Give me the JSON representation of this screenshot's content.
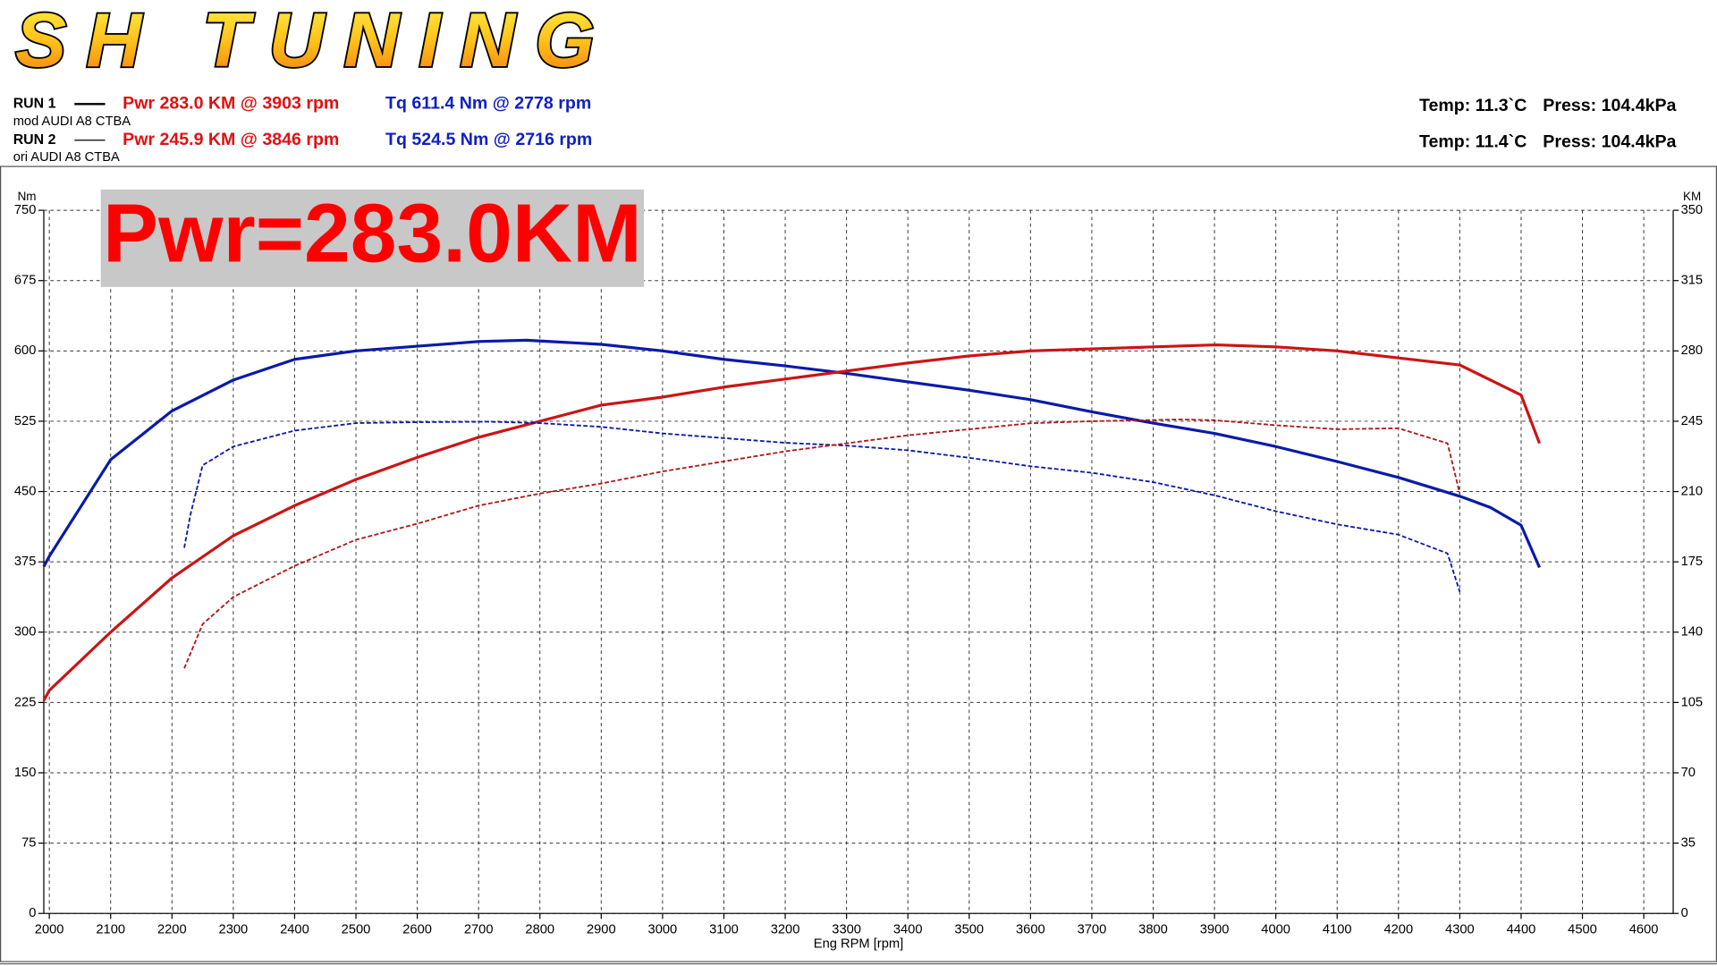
{
  "chart_data": {
    "type": "line",
    "logo": "SH TUNING",
    "annotation": "Pwr=283.0KM",
    "ylabel": "Nm",
    "y2label": "KM",
    "xlabel": "Eng RPM [rpm]",
    "runs": [
      {
        "label": "RUN 1",
        "vehicle": "mod AUDI A8 CTBA",
        "pwr": "Pwr 283.0 KM @ 3903 rpm",
        "tq": "Tq 611.4 Nm @ 2778 rpm",
        "temp": "Temp: 11.3`C",
        "press": "Press: 104.4kPa",
        "style": "solid"
      },
      {
        "label": "RUN 2",
        "vehicle": "ori AUDI A8 CTBA",
        "pwr": "Pwr 245.9 KM @ 3846 rpm",
        "tq": "Tq 524.5 Nm @ 2716 rpm",
        "temp": "Temp: 11.4`C",
        "press": "Press: 104.4kPa",
        "style": "dashed"
      }
    ],
    "xlim": [
      1991,
      4648
    ],
    "xticks": [
      2000,
      2100,
      2200,
      2300,
      2400,
      2500,
      2600,
      2700,
      2800,
      2900,
      3000,
      3100,
      3200,
      3300,
      3400,
      3500,
      3600,
      3700,
      3800,
      3900,
      4000,
      4100,
      4200,
      4300,
      4400,
      4500,
      4600
    ],
    "ylim": [
      0,
      750
    ],
    "yticks": [
      0,
      75,
      150,
      225,
      300,
      375,
      450,
      525,
      600,
      675,
      750
    ],
    "y2lim": [
      0,
      350
    ],
    "y2ticks": [
      0,
      35,
      70,
      105,
      140,
      175,
      210,
      245,
      280,
      315,
      350
    ],
    "grid": true,
    "series": [
      {
        "color": "#0a1aa8",
        "style": "solid",
        "axis": "y",
        "x": [
          1991,
          2000,
          2100,
          2200,
          2300,
          2400,
          2500,
          2600,
          2700,
          2778,
          2900,
          3000,
          3100,
          3200,
          3300,
          3400,
          3500,
          3600,
          3700,
          3800,
          3900,
          4000,
          4100,
          4200,
          4300,
          4350,
          4400,
          4430
        ],
        "values": [
          370,
          381,
          484,
          536,
          569,
          591,
          600,
          605,
          610,
          611.4,
          607,
          600,
          591,
          584,
          576,
          567,
          558,
          548,
          535,
          523,
          512,
          498,
          482,
          465,
          445,
          433,
          414,
          369
        ]
      },
      {
        "color": "#cc1414",
        "style": "solid",
        "axis": "y2",
        "x": [
          1991,
          2000,
          2100,
          2200,
          2300,
          2400,
          2500,
          2600,
          2700,
          2800,
          2900,
          3000,
          3100,
          3200,
          3300,
          3400,
          3500,
          3600,
          3700,
          3800,
          3903,
          4000,
          4100,
          4200,
          4300,
          4400,
          4430
        ],
        "values": [
          106,
          111,
          140,
          167,
          188,
          203,
          216,
          227,
          237,
          245,
          253,
          257,
          262,
          266,
          270,
          274,
          277.5,
          280,
          281,
          282,
          283.0,
          282,
          280,
          276.5,
          273,
          258,
          234
        ]
      },
      {
        "color": "#0a1aa8",
        "style": "dashed",
        "axis": "y",
        "x": [
          2220,
          2230,
          2250,
          2300,
          2400,
          2500,
          2600,
          2716,
          2800,
          2900,
          3000,
          3100,
          3200,
          3300,
          3400,
          3500,
          3600,
          3700,
          3800,
          3900,
          4000,
          4100,
          4200,
          4280,
          4300
        ],
        "values": [
          390,
          425,
          478,
          498,
          515,
          523,
          524,
          524.5,
          523,
          519,
          512,
          507,
          502,
          499,
          494,
          486,
          477,
          470,
          460,
          446,
          429,
          415,
          404,
          384,
          343
        ]
      },
      {
        "color": "#b01818",
        "style": "dashed",
        "axis": "y2",
        "x": [
          2220,
          2250,
          2300,
          2400,
          2500,
          2600,
          2700,
          2800,
          2900,
          3000,
          3100,
          3200,
          3300,
          3400,
          3500,
          3600,
          3700,
          3846,
          3900,
          4000,
          4100,
          4200,
          4280,
          4300
        ],
        "values": [
          122,
          144,
          157.5,
          173,
          186,
          194,
          203,
          209,
          214,
          220,
          225,
          230,
          234,
          238,
          241,
          244,
          245,
          245.9,
          245.5,
          243,
          241,
          241.5,
          234,
          209
        ]
      }
    ]
  }
}
